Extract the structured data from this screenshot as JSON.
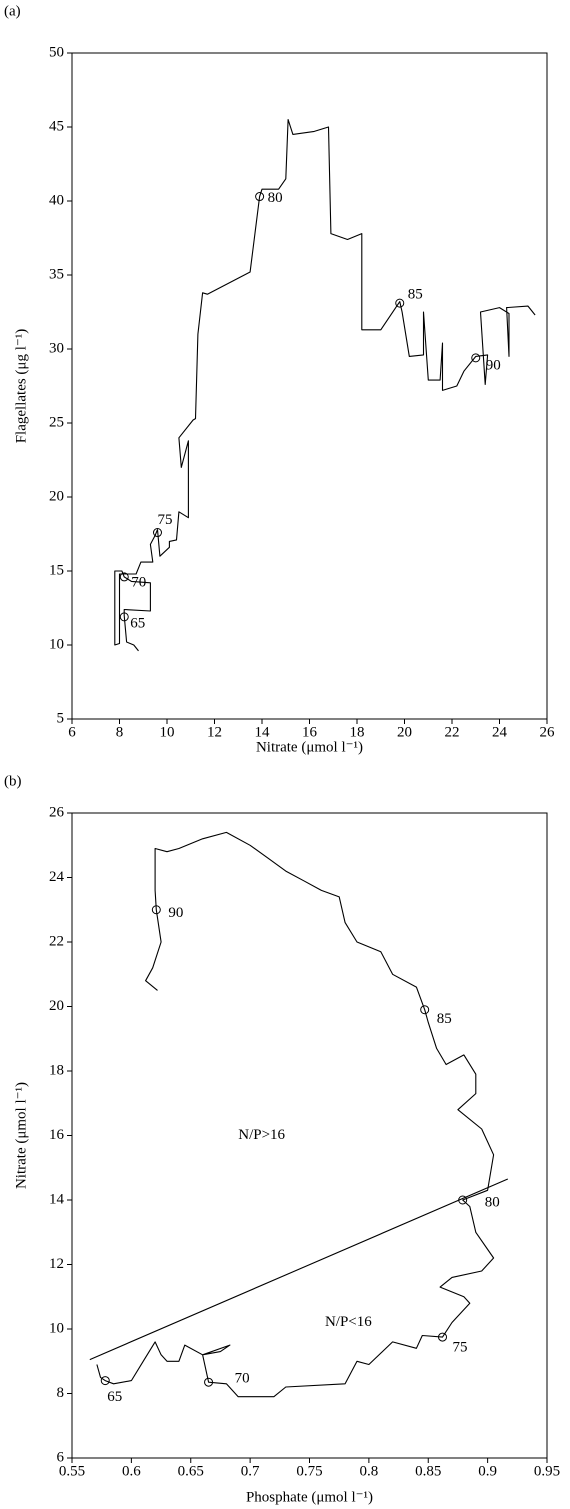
{
  "chart_data": [
    {
      "type": "line",
      "panel_label": "(a)",
      "x_label": "Nitrate (μmol l⁻¹)",
      "y_label": "Flagellates (μg l⁻¹)",
      "xlim": [
        6,
        26
      ],
      "ylim": [
        5,
        50
      ],
      "xticks": [
        6,
        8,
        10,
        12,
        14,
        16,
        18,
        20,
        22,
        24,
        26
      ],
      "yticks": [
        5,
        10,
        15,
        20,
        25,
        30,
        35,
        40,
        45,
        50
      ],
      "series": [
        {
          "color": "#000000",
          "x": [
            8.8,
            8.6,
            8.3,
            8.2,
            8.2,
            9.3,
            9.3,
            8.5,
            8.2,
            8.1,
            7.8,
            7.8,
            8.0,
            8.0,
            8.7,
            8.9,
            9.4,
            9.3,
            9.5,
            9.6,
            9.7,
            10.1,
            10.1,
            10.4,
            10.5,
            10.9,
            10.9,
            10.6,
            10.5,
            11.1,
            11.2,
            11.3,
            11.5,
            11.7,
            13.5,
            13.9,
            14.0,
            14.7,
            15.0,
            15.1,
            15.3,
            16.2,
            16.8,
            16.9,
            17.6,
            18.2,
            18.2,
            19.0,
            19.8,
            19.9,
            20.2,
            20.8,
            20.8,
            21.0,
            21.5,
            21.6,
            21.6,
            22.2,
            22.5,
            23.0,
            23.5,
            23.4,
            23.2,
            24.0,
            24.4,
            24.4,
            24.3,
            25.2,
            25.5
          ],
          "values": [
            9.6,
            10.0,
            10.2,
            12.0,
            12.4,
            12.3,
            14.2,
            14.3,
            14.6,
            15.0,
            15.0,
            10.0,
            10.1,
            14.8,
            14.8,
            15.6,
            15.6,
            16.8,
            17.4,
            17.8,
            16.0,
            16.6,
            17.0,
            17.1,
            19.0,
            18.6,
            23.8,
            22.0,
            24.0,
            25.2,
            25.3,
            31.0,
            33.8,
            33.7,
            35.2,
            40.3,
            40.8,
            40.8,
            41.5,
            45.5,
            44.5,
            44.7,
            45.0,
            37.8,
            37.4,
            37.8,
            31.3,
            31.3,
            33.2,
            32.5,
            29.5,
            29.6,
            32.5,
            27.9,
            27.9,
            30.4,
            27.2,
            27.5,
            28.5,
            29.5,
            29.6,
            27.6,
            32.5,
            32.8,
            32.4,
            29.5,
            32.8,
            32.9,
            32.3
          ]
        }
      ],
      "markers": [
        {
          "label": "65",
          "x": 8.2,
          "y": 11.9
        },
        {
          "label": "70",
          "x": 8.2,
          "y": 14.6
        },
        {
          "label": "75",
          "x": 9.6,
          "y": 17.6
        },
        {
          "label": "80",
          "x": 13.9,
          "y": 40.3
        },
        {
          "label": "85",
          "x": 19.8,
          "y": 33.1
        },
        {
          "label": "90",
          "x": 23.0,
          "y": 29.4
        }
      ],
      "region_labels": []
    },
    {
      "type": "line",
      "panel_label": "(b)",
      "x_label": "Phosphate (μmol l⁻¹)",
      "y_label": "Nitrate (μmol l⁻¹)",
      "xlim": [
        0.55,
        0.95
      ],
      "ylim": [
        6,
        26
      ],
      "xticks": [
        0.55,
        0.6,
        0.65,
        0.7,
        0.75,
        0.8,
        0.85,
        0.9,
        0.95
      ],
      "yticks": [
        6,
        8,
        10,
        12,
        14,
        16,
        18,
        20,
        22,
        24,
        26
      ],
      "series": [
        {
          "color": "#000000",
          "x": [
            0.571,
            0.574,
            0.578,
            0.585,
            0.6,
            0.61,
            0.62,
            0.625,
            0.63,
            0.64,
            0.645,
            0.66,
            0.675,
            0.683,
            0.66,
            0.665,
            0.68,
            0.69,
            0.72,
            0.73,
            0.78,
            0.79,
            0.8,
            0.82,
            0.84,
            0.845,
            0.862,
            0.87,
            0.885,
            0.88,
            0.86,
            0.87,
            0.895,
            0.905,
            0.89,
            0.885,
            0.879,
            0.9,
            0.905,
            0.895,
            0.875,
            0.89,
            0.89,
            0.88,
            0.865,
            0.857,
            0.85,
            0.847,
            0.84,
            0.82,
            0.81,
            0.79,
            0.78,
            0.775,
            0.76,
            0.745,
            0.73,
            0.715,
            0.7,
            0.68,
            0.66,
            0.64,
            0.63,
            0.62,
            0.62,
            0.621,
            0.625,
            0.618,
            0.612,
            0.622
          ],
          "values": [
            8.9,
            8.5,
            8.4,
            8.3,
            8.4,
            9.0,
            9.6,
            9.2,
            9.0,
            9.0,
            9.5,
            9.2,
            9.3,
            9.5,
            9.2,
            8.35,
            8.3,
            7.9,
            7.9,
            8.2,
            8.3,
            9.0,
            8.9,
            9.6,
            9.4,
            9.8,
            9.75,
            10.2,
            10.8,
            11.0,
            11.3,
            11.6,
            11.8,
            12.2,
            13.0,
            13.8,
            14.0,
            14.3,
            15.4,
            16.2,
            16.8,
            17.3,
            17.9,
            18.5,
            18.2,
            18.7,
            19.5,
            19.9,
            20.6,
            21.0,
            21.7,
            22.0,
            22.6,
            23.4,
            23.6,
            23.9,
            24.2,
            24.6,
            25.0,
            25.4,
            25.2,
            24.9,
            24.8,
            24.9,
            23.6,
            23.0,
            22.0,
            21.2,
            20.8,
            20.5
          ]
        },
        {
          "color": "#000000",
          "x": [
            0.565,
            0.917
          ],
          "values": [
            9.05,
            14.65
          ]
        }
      ],
      "markers": [
        {
          "label": "65",
          "x": 0.578,
          "y": 8.4
        },
        {
          "label": "70",
          "x": 0.665,
          "y": 8.35
        },
        {
          "label": "75",
          "x": 0.862,
          "y": 9.75
        },
        {
          "label": "80",
          "x": 0.879,
          "y": 14.0
        },
        {
          "label": "85",
          "x": 0.847,
          "y": 19.9
        },
        {
          "label": "90",
          "x": 0.621,
          "y": 23.0
        }
      ],
      "region_labels": [
        "N/P>16",
        "N/P<16"
      ]
    }
  ]
}
